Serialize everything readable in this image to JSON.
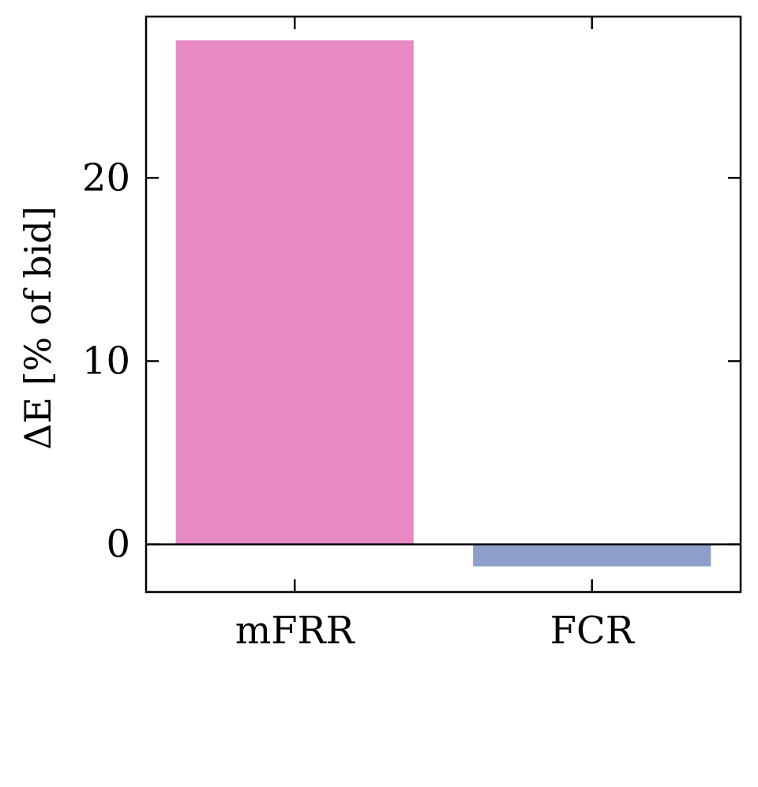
{
  "chart_data": {
    "type": "bar",
    "categories": [
      "mFRR",
      "FCR"
    ],
    "values": [
      27.5,
      -1.2
    ],
    "colors": [
      "#e78ac3",
      "#8da0cb"
    ],
    "ylabel": "ΔE [% of bid]",
    "xlabel": "",
    "ylim": [
      -2.6,
      28.8
    ],
    "yticks": [
      0,
      10,
      20
    ],
    "ytick_labels": [
      "0",
      "10",
      "20"
    ],
    "grid": false,
    "zero_line": true
  }
}
